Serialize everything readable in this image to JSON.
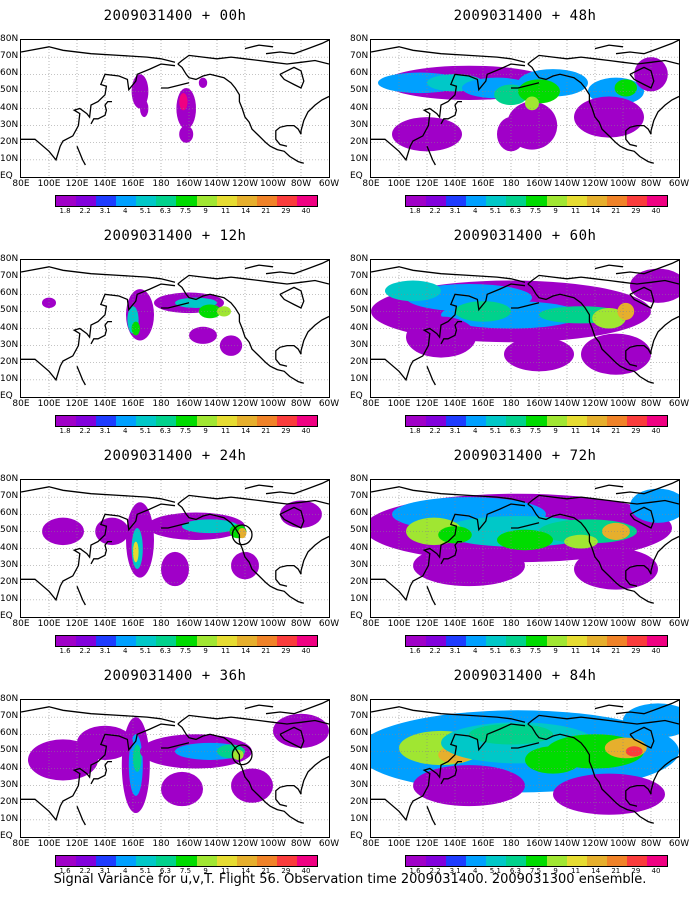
{
  "caption": "Signal Variance for u,v,T. Flight 56. Observation time 2009031400. 2009031300 ensemble.",
  "lat_labels": [
    "80N",
    "70N",
    "60N",
    "50N",
    "40N",
    "30N",
    "20N",
    "10N",
    "EQ"
  ],
  "lon_labels": [
    "80E",
    "100E",
    "120E",
    "140E",
    "160E",
    "180",
    "160W",
    "140W",
    "120W",
    "100W",
    "80W",
    "60W"
  ],
  "colorbar": {
    "levels": [
      "1.6",
      "2.2",
      "3.1",
      "4",
      "5.1",
      "6.3",
      "7.5",
      "9",
      "11",
      "14",
      "21",
      "29",
      "40"
    ],
    "levels_alt_first": "1.8",
    "colors": [
      "#a000c8",
      "#8200dc",
      "#1e3cff",
      "#00a0ff",
      "#00c8c8",
      "#00d28c",
      "#00dc00",
      "#a0e632",
      "#e6dc32",
      "#e6af2d",
      "#f08228",
      "#fa3c3c",
      "#f00082"
    ]
  },
  "panels": [
    {
      "id": "p00",
      "title": "2009031400 + 00h",
      "first_level": "1.8"
    },
    {
      "id": "p48",
      "title": "2009031400 + 48h",
      "first_level": "1.8"
    },
    {
      "id": "p12",
      "title": "2009031400 + 12h",
      "first_level": "1.8"
    },
    {
      "id": "p60",
      "title": "2009031400 + 60h",
      "first_level": "1.8"
    },
    {
      "id": "p24",
      "title": "2009031400 + 24h",
      "first_level": "1.6"
    },
    {
      "id": "p72",
      "title": "2009031400 + 72h",
      "first_level": "1.6"
    },
    {
      "id": "p36",
      "title": "2009031400 + 36h",
      "first_level": "1.6"
    },
    {
      "id": "p84",
      "title": "2009031400 + 84h",
      "first_level": "1.6"
    }
  ]
}
